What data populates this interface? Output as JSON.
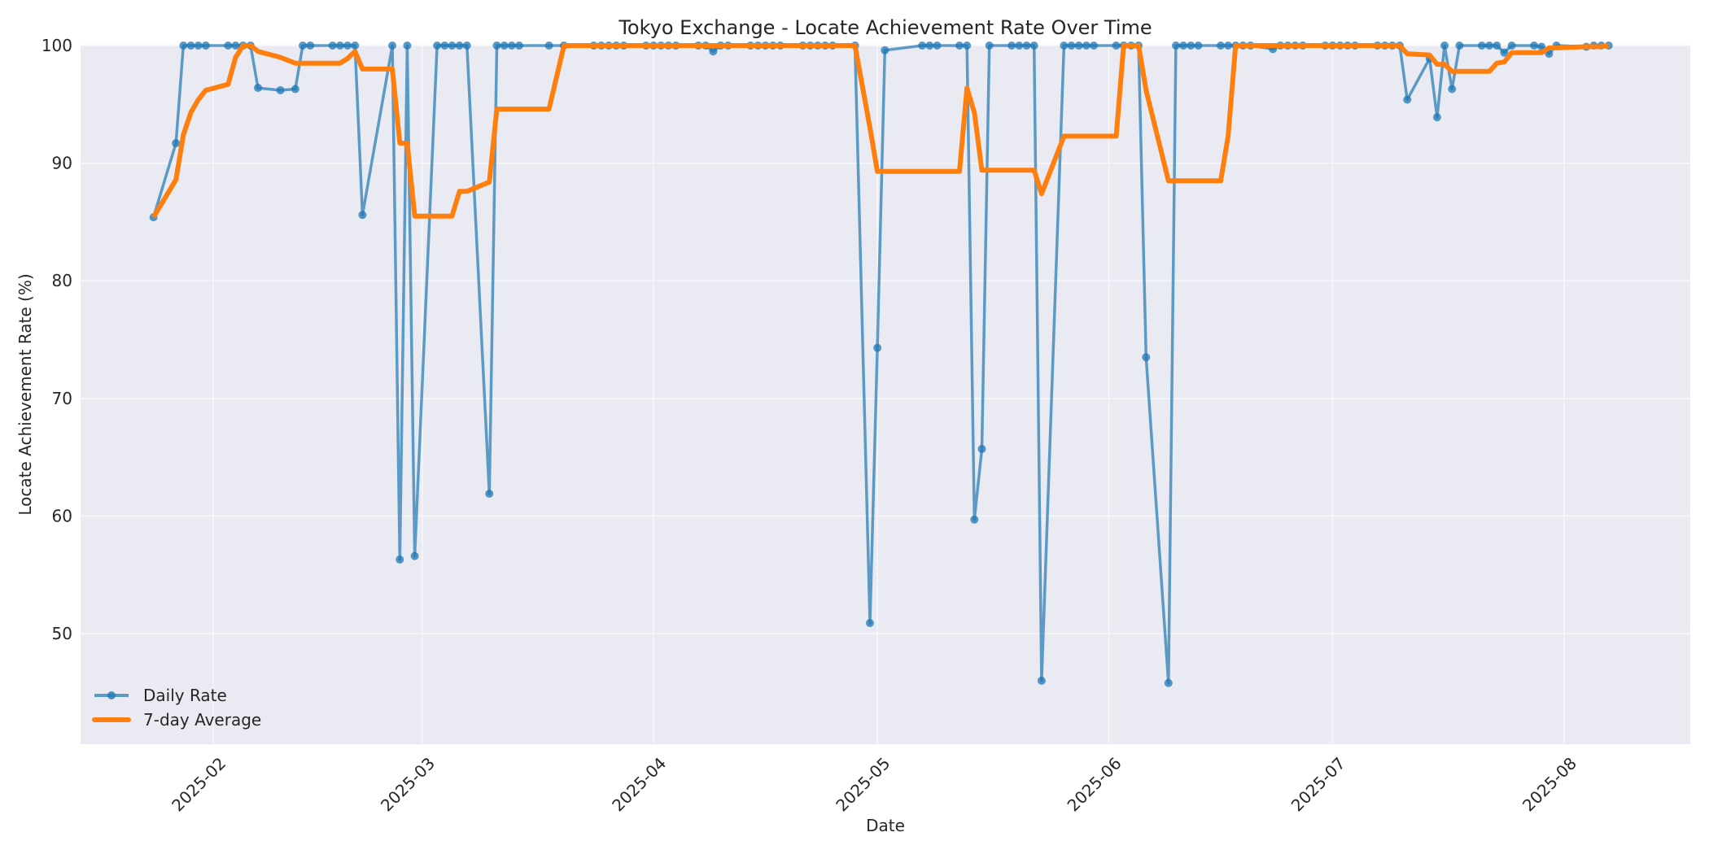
{
  "chart_data": {
    "type": "line",
    "title": "Tokyo Exchange - Locate Achievement Rate Over Time",
    "xlabel": "Date",
    "ylabel": "Locate Achievement Rate (%)",
    "ylim": [
      40.6,
      100
    ],
    "xlim": [
      "2025-01-16",
      "2025-08-16"
    ],
    "grid": true,
    "legend_position": "lower left",
    "y_ticks": [
      50,
      60,
      70,
      80,
      90,
      100
    ],
    "x_ticks": [
      {
        "date": "2025-02-01",
        "label": "2025-02"
      },
      {
        "date": "2025-03-01",
        "label": "2025-03"
      },
      {
        "date": "2025-04-01",
        "label": "2025-04"
      },
      {
        "date": "2025-05-01",
        "label": "2025-05"
      },
      {
        "date": "2025-06-01",
        "label": "2025-06"
      },
      {
        "date": "2025-07-01",
        "label": "2025-07"
      },
      {
        "date": "2025-08-01",
        "label": "2025-08"
      }
    ],
    "colors": {
      "daily": "#1f77b4",
      "average": "#ff7f0e",
      "plot_bg": "#eaeaf2",
      "grid": "#f5f5f8"
    },
    "series": [
      {
        "name": "Daily Rate",
        "style": "line-with-markers",
        "points": [
          [
            "2025-01-24",
            85.4
          ],
          [
            "2025-01-27",
            91.7
          ],
          [
            "2025-01-28",
            100
          ],
          [
            "2025-01-29",
            100
          ],
          [
            "2025-01-30",
            100
          ],
          [
            "2025-01-31",
            100
          ],
          [
            "2025-02-03",
            100
          ],
          [
            "2025-02-04",
            100
          ],
          [
            "2025-02-05",
            100
          ],
          [
            "2025-02-06",
            100
          ],
          [
            "2025-02-07",
            96.4
          ],
          [
            "2025-02-10",
            96.2
          ],
          [
            "2025-02-12",
            96.3
          ],
          [
            "2025-02-13",
            100
          ],
          [
            "2025-02-14",
            100
          ],
          [
            "2025-02-17",
            100
          ],
          [
            "2025-02-18",
            100
          ],
          [
            "2025-02-19",
            100
          ],
          [
            "2025-02-20",
            100
          ],
          [
            "2025-02-21",
            85.6
          ],
          [
            "2025-02-25",
            100
          ],
          [
            "2025-02-26",
            56.3
          ],
          [
            "2025-02-27",
            100
          ],
          [
            "2025-02-28",
            56.6
          ],
          [
            "2025-03-03",
            100
          ],
          [
            "2025-03-04",
            100
          ],
          [
            "2025-03-05",
            100
          ],
          [
            "2025-03-06",
            100
          ],
          [
            "2025-03-07",
            100
          ],
          [
            "2025-03-10",
            61.9
          ],
          [
            "2025-03-11",
            100
          ],
          [
            "2025-03-12",
            100
          ],
          [
            "2025-03-13",
            100
          ],
          [
            "2025-03-14",
            100
          ],
          [
            "2025-03-18",
            100
          ],
          [
            "2025-03-20",
            100
          ],
          [
            "2025-03-24",
            100
          ],
          [
            "2025-03-25",
            100
          ],
          [
            "2025-03-26",
            100
          ],
          [
            "2025-03-27",
            100
          ],
          [
            "2025-03-28",
            100
          ],
          [
            "2025-03-31",
            100
          ],
          [
            "2025-04-01",
            100
          ],
          [
            "2025-04-02",
            100
          ],
          [
            "2025-04-03",
            100
          ],
          [
            "2025-04-04",
            100
          ],
          [
            "2025-04-07",
            100
          ],
          [
            "2025-04-08",
            100
          ],
          [
            "2025-04-09",
            99.5
          ],
          [
            "2025-04-10",
            100
          ],
          [
            "2025-04-11",
            100
          ],
          [
            "2025-04-14",
            100
          ],
          [
            "2025-04-15",
            100
          ],
          [
            "2025-04-16",
            100
          ],
          [
            "2025-04-17",
            100
          ],
          [
            "2025-04-18",
            100
          ],
          [
            "2025-04-21",
            100
          ],
          [
            "2025-04-22",
            100
          ],
          [
            "2025-04-23",
            100
          ],
          [
            "2025-04-24",
            100
          ],
          [
            "2025-04-25",
            100
          ],
          [
            "2025-04-28",
            100
          ],
          [
            "2025-04-30",
            50.9
          ],
          [
            "2025-05-01",
            74.3
          ],
          [
            "2025-05-02",
            99.6
          ],
          [
            "2025-05-07",
            100
          ],
          [
            "2025-05-08",
            100
          ],
          [
            "2025-05-09",
            100
          ],
          [
            "2025-05-12",
            100
          ],
          [
            "2025-05-13",
            100
          ],
          [
            "2025-05-14",
            59.7
          ],
          [
            "2025-05-15",
            65.7
          ],
          [
            "2025-05-16",
            100
          ],
          [
            "2025-05-19",
            100
          ],
          [
            "2025-05-20",
            100
          ],
          [
            "2025-05-21",
            100
          ],
          [
            "2025-05-22",
            100
          ],
          [
            "2025-05-23",
            46.0
          ],
          [
            "2025-05-26",
            100
          ],
          [
            "2025-05-27",
            100
          ],
          [
            "2025-05-28",
            100
          ],
          [
            "2025-05-29",
            100
          ],
          [
            "2025-05-30",
            100
          ],
          [
            "2025-06-02",
            100
          ],
          [
            "2025-06-03",
            100
          ],
          [
            "2025-06-04",
            100
          ],
          [
            "2025-06-05",
            100
          ],
          [
            "2025-06-06",
            73.5
          ],
          [
            "2025-06-09",
            45.8
          ],
          [
            "2025-06-10",
            100
          ],
          [
            "2025-06-11",
            100
          ],
          [
            "2025-06-12",
            100
          ],
          [
            "2025-06-13",
            100
          ],
          [
            "2025-06-16",
            100
          ],
          [
            "2025-06-17",
            100
          ],
          [
            "2025-06-18",
            100
          ],
          [
            "2025-06-19",
            100
          ],
          [
            "2025-06-20",
            100
          ],
          [
            "2025-06-23",
            99.7
          ],
          [
            "2025-06-24",
            100
          ],
          [
            "2025-06-25",
            100
          ],
          [
            "2025-06-26",
            100
          ],
          [
            "2025-06-27",
            100
          ],
          [
            "2025-06-30",
            100
          ],
          [
            "2025-07-01",
            100
          ],
          [
            "2025-07-02",
            100
          ],
          [
            "2025-07-03",
            100
          ],
          [
            "2025-07-04",
            100
          ],
          [
            "2025-07-07",
            100
          ],
          [
            "2025-07-08",
            100
          ],
          [
            "2025-07-09",
            100
          ],
          [
            "2025-07-10",
            100
          ],
          [
            "2025-07-11",
            95.4
          ],
          [
            "2025-07-14",
            98.9
          ],
          [
            "2025-07-15",
            93.9
          ],
          [
            "2025-07-16",
            100
          ],
          [
            "2025-07-17",
            96.3
          ],
          [
            "2025-07-18",
            100
          ],
          [
            "2025-07-21",
            100
          ],
          [
            "2025-07-22",
            100
          ],
          [
            "2025-07-23",
            100
          ],
          [
            "2025-07-24",
            99.4
          ],
          [
            "2025-07-25",
            100
          ],
          [
            "2025-07-28",
            100
          ],
          [
            "2025-07-29",
            99.9
          ],
          [
            "2025-07-30",
            99.3
          ],
          [
            "2025-07-31",
            100
          ],
          [
            "2025-08-04",
            99.9
          ],
          [
            "2025-08-05",
            100
          ],
          [
            "2025-08-06",
            100
          ],
          [
            "2025-08-07",
            100
          ]
        ]
      },
      {
        "name": "7-day Average",
        "style": "thick-line",
        "points": [
          [
            "2025-01-24",
            85.4
          ],
          [
            "2025-01-27",
            88.6
          ],
          [
            "2025-01-28",
            92.4
          ],
          [
            "2025-01-29",
            94.3
          ],
          [
            "2025-01-30",
            95.4
          ],
          [
            "2025-01-31",
            96.2
          ],
          [
            "2025-02-03",
            96.7
          ],
          [
            "2025-02-04",
            99.0
          ],
          [
            "2025-02-05",
            100
          ],
          [
            "2025-02-06",
            100
          ],
          [
            "2025-02-07",
            99.5
          ],
          [
            "2025-02-10",
            99.0
          ],
          [
            "2025-02-12",
            98.5
          ],
          [
            "2025-02-13",
            98.5
          ],
          [
            "2025-02-14",
            98.5
          ],
          [
            "2025-02-17",
            98.5
          ],
          [
            "2025-02-18",
            98.5
          ],
          [
            "2025-02-19",
            98.9
          ],
          [
            "2025-02-20",
            99.5
          ],
          [
            "2025-02-21",
            98.0
          ],
          [
            "2025-02-25",
            98.0
          ],
          [
            "2025-02-26",
            91.7
          ],
          [
            "2025-02-27",
            91.7
          ],
          [
            "2025-02-28",
            85.5
          ],
          [
            "2025-03-03",
            85.5
          ],
          [
            "2025-03-04",
            85.5
          ],
          [
            "2025-03-05",
            85.5
          ],
          [
            "2025-03-06",
            87.6
          ],
          [
            "2025-03-07",
            87.6
          ],
          [
            "2025-03-10",
            88.4
          ],
          [
            "2025-03-11",
            94.6
          ],
          [
            "2025-03-12",
            94.6
          ],
          [
            "2025-03-13",
            94.6
          ],
          [
            "2025-03-14",
            94.6
          ],
          [
            "2025-03-18",
            94.6
          ],
          [
            "2025-03-20",
            100
          ],
          [
            "2025-04-28",
            100
          ],
          [
            "2025-04-30",
            93.0
          ],
          [
            "2025-05-01",
            89.3
          ],
          [
            "2025-05-02",
            89.3
          ],
          [
            "2025-05-07",
            89.3
          ],
          [
            "2025-05-08",
            89.3
          ],
          [
            "2025-05-09",
            89.3
          ],
          [
            "2025-05-12",
            89.3
          ],
          [
            "2025-05-13",
            96.4
          ],
          [
            "2025-05-14",
            94.3
          ],
          [
            "2025-05-15",
            89.4
          ],
          [
            "2025-05-16",
            89.4
          ],
          [
            "2025-05-19",
            89.4
          ],
          [
            "2025-05-20",
            89.4
          ],
          [
            "2025-05-21",
            89.4
          ],
          [
            "2025-05-22",
            89.4
          ],
          [
            "2025-05-23",
            87.4
          ],
          [
            "2025-05-26",
            92.3
          ],
          [
            "2025-05-27",
            92.3
          ],
          [
            "2025-05-28",
            92.3
          ],
          [
            "2025-05-29",
            92.3
          ],
          [
            "2025-05-30",
            92.3
          ],
          [
            "2025-06-02",
            92.3
          ],
          [
            "2025-06-03",
            100
          ],
          [
            "2025-06-04",
            100
          ],
          [
            "2025-06-05",
            100
          ],
          [
            "2025-06-06",
            96.2
          ],
          [
            "2025-06-09",
            88.5
          ],
          [
            "2025-06-10",
            88.5
          ],
          [
            "2025-06-11",
            88.5
          ],
          [
            "2025-06-12",
            88.5
          ],
          [
            "2025-06-13",
            88.5
          ],
          [
            "2025-06-16",
            88.5
          ],
          [
            "2025-06-17",
            92.3
          ],
          [
            "2025-06-18",
            100
          ],
          [
            "2025-06-19",
            100
          ],
          [
            "2025-07-10",
            100
          ],
          [
            "2025-07-11",
            99.3
          ],
          [
            "2025-07-14",
            99.2
          ],
          [
            "2025-07-15",
            98.4
          ],
          [
            "2025-07-16",
            98.4
          ],
          [
            "2025-07-17",
            97.8
          ],
          [
            "2025-07-18",
            97.8
          ],
          [
            "2025-07-21",
            97.8
          ],
          [
            "2025-07-22",
            97.8
          ],
          [
            "2025-07-23",
            98.5
          ],
          [
            "2025-07-24",
            98.6
          ],
          [
            "2025-07-25",
            99.4
          ],
          [
            "2025-07-28",
            99.4
          ],
          [
            "2025-07-29",
            99.4
          ],
          [
            "2025-07-30",
            99.8
          ],
          [
            "2025-07-31",
            99.8
          ],
          [
            "2025-08-04",
            99.9
          ],
          [
            "2025-08-05",
            99.9
          ],
          [
            "2025-08-06",
            99.9
          ],
          [
            "2025-08-07",
            100
          ]
        ]
      }
    ]
  },
  "legend": {
    "items": [
      {
        "label": "Daily Rate"
      },
      {
        "label": "7-day Average"
      }
    ]
  }
}
